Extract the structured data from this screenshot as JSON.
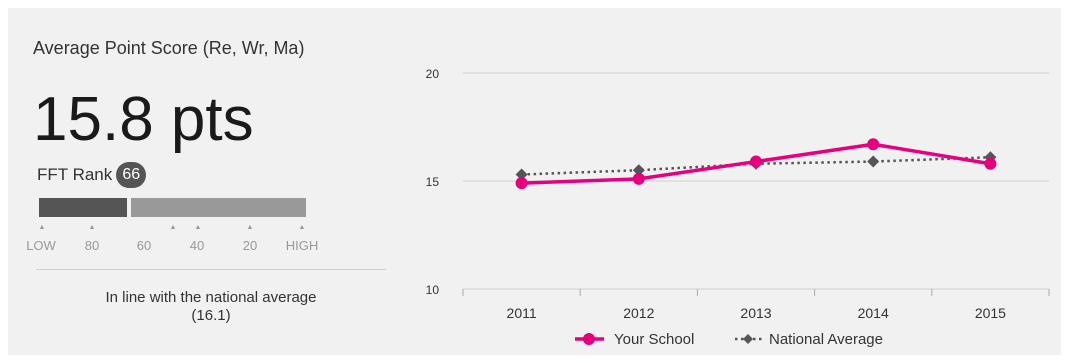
{
  "metric": {
    "title": "Average Point Score (Re, Wr, Ma)",
    "value_text": "15.8 pts",
    "rank_label": "FFT Rank",
    "rank_value": "66",
    "rank_percentile": 66,
    "scale_labels": [
      "LOW",
      "80",
      "60",
      "40",
      "20",
      "HIGH"
    ],
    "note_line1": "In line with the national average",
    "note_line2": "(16.1)"
  },
  "colors": {
    "your_school": "#e6007e",
    "national": "#555555",
    "rank_dark": "#555555",
    "rank_light": "#999999"
  },
  "chart_data": {
    "type": "line",
    "x": [
      "2011",
      "2012",
      "2013",
      "2014",
      "2015"
    ],
    "ylim": [
      10,
      20
    ],
    "yticks": [
      "20",
      "15",
      "10"
    ],
    "grid": true,
    "legend_placement": "bottom",
    "series": [
      {
        "name": "Your School",
        "values": [
          14.9,
          15.1,
          15.9,
          16.7,
          15.8
        ],
        "color": "#e6007e",
        "style": "solid",
        "marker": "circle"
      },
      {
        "name": "National Average",
        "values": [
          15.3,
          15.5,
          15.8,
          15.9,
          16.1
        ],
        "color": "#555555",
        "style": "dotted",
        "marker": "diamond"
      }
    ]
  }
}
